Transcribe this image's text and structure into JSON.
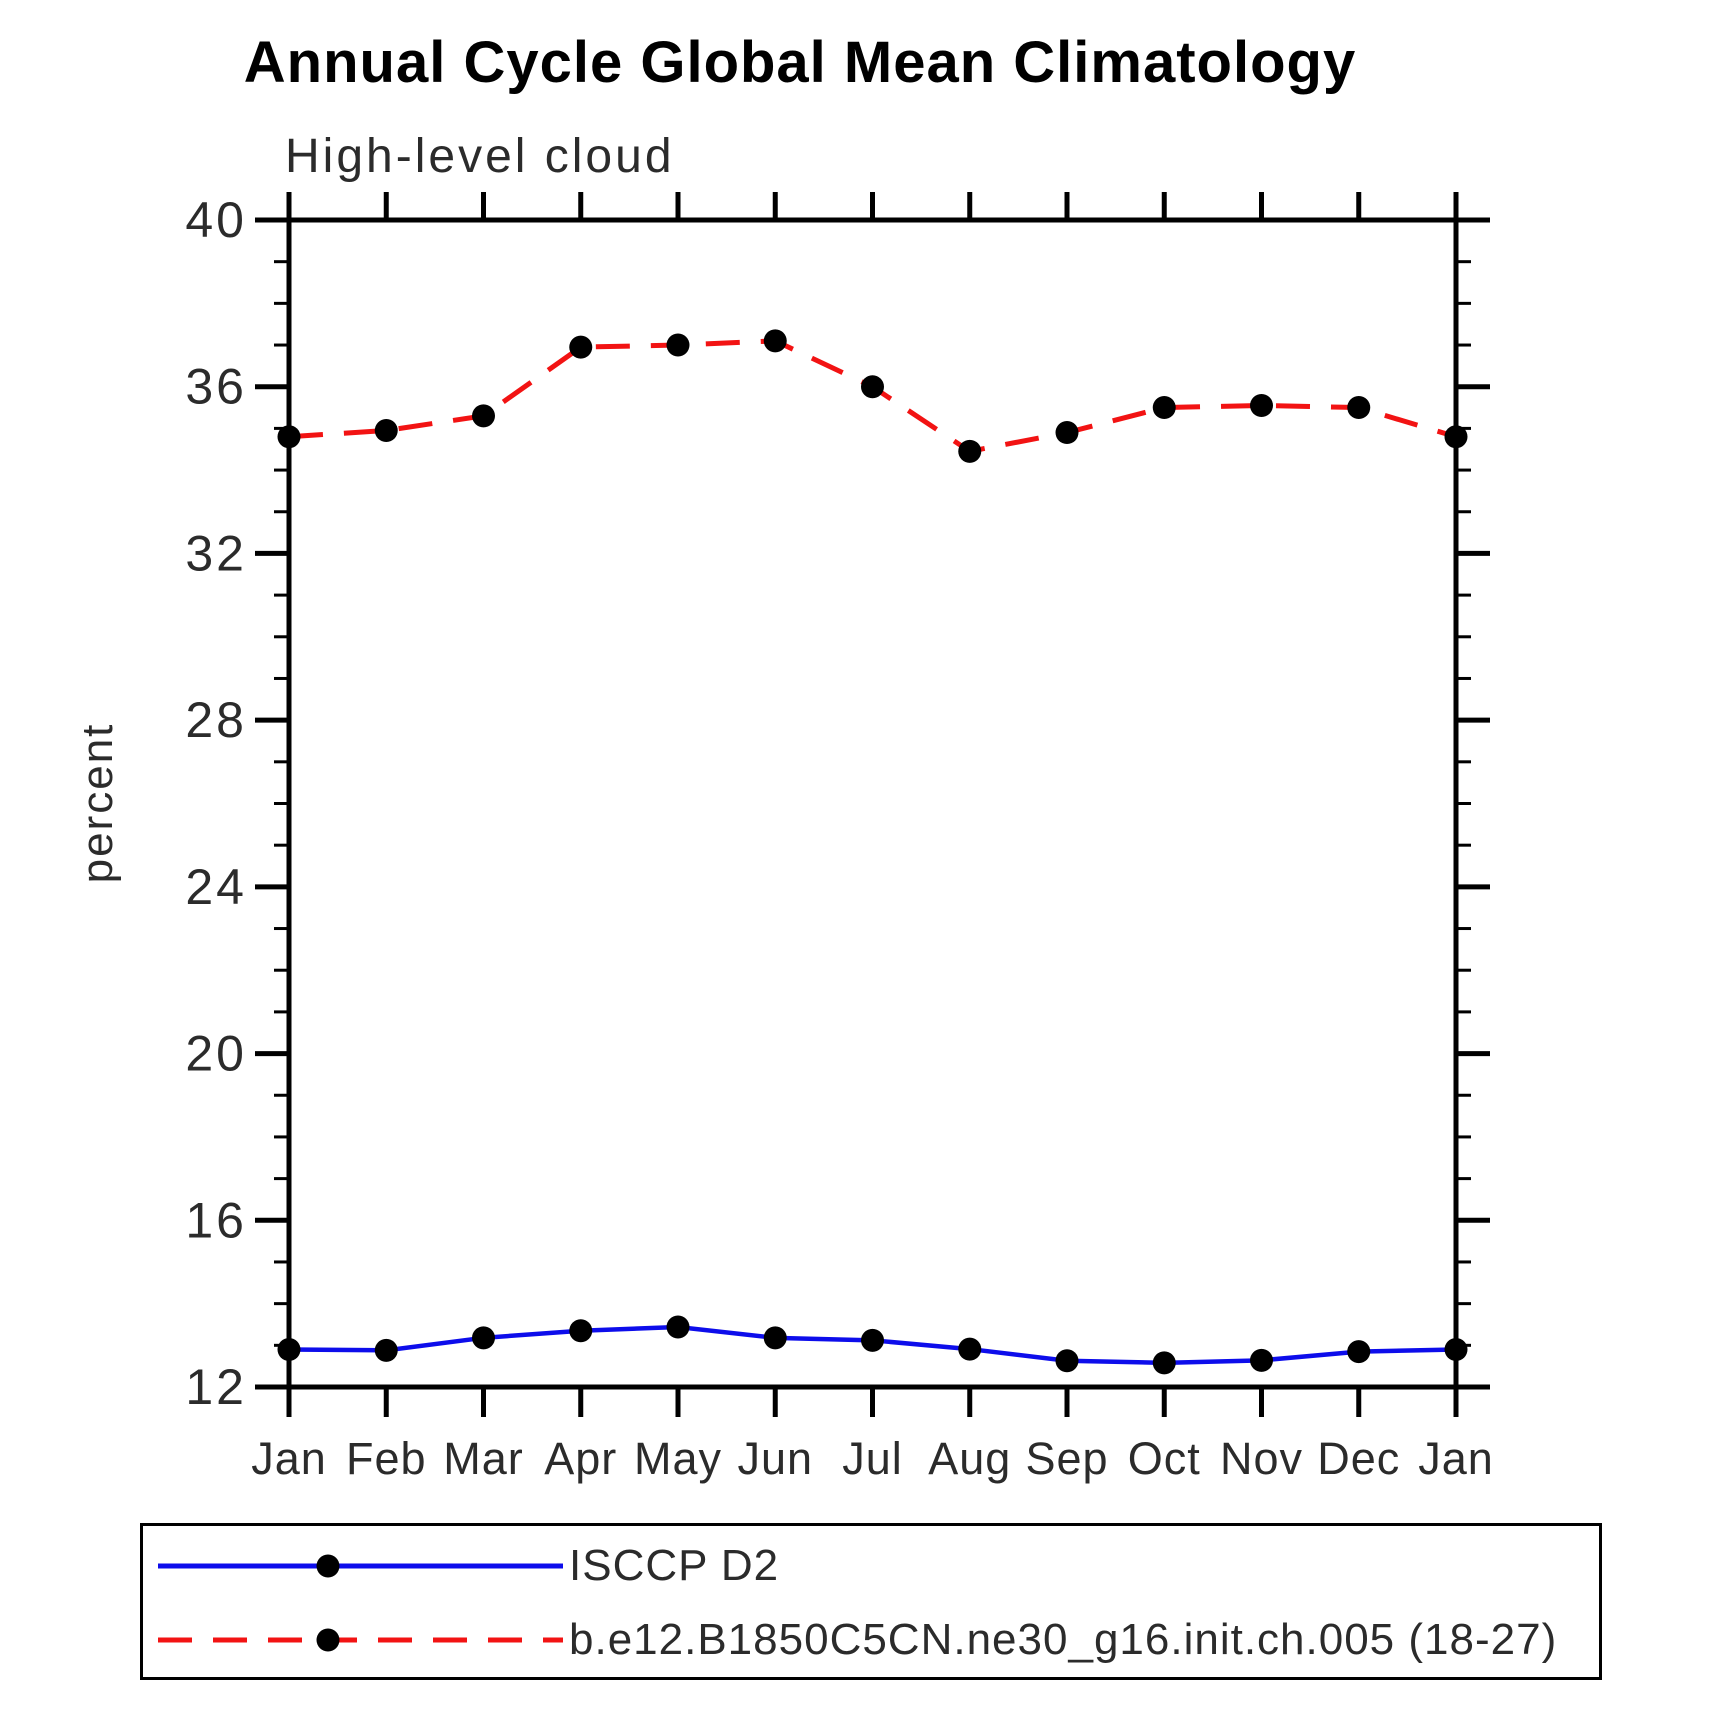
{
  "title": "Annual Cycle Global Mean Climatology",
  "subtitle": "High-level cloud",
  "chart_data": {
    "type": "line",
    "title": "Annual Cycle Global Mean Climatology",
    "subtitle": "High-level cloud",
    "xlabel": "",
    "ylabel": "percent",
    "ylim": [
      12,
      40
    ],
    "y_major_ticks": [
      12,
      16,
      20,
      24,
      28,
      32,
      36,
      40
    ],
    "y_minor_step": 1,
    "x_tick_labels": [
      "Jan",
      "Feb",
      "Mar",
      "Apr",
      "May",
      "Jun",
      "Jul",
      "Aug",
      "Sep",
      "Oct",
      "Nov",
      "Dec",
      "Jan"
    ],
    "grid": "off",
    "legend_position": "bottom-left",
    "colors": {
      "axis": "#000000",
      "background": "#ffffff",
      "marker": "#000000"
    },
    "series": [
      {
        "name": "ISCCP D2",
        "color": "#0d0deb",
        "line_style": "solid",
        "marker": "filled-circle",
        "marker_color": "#000000",
        "values": [
          12.9,
          12.88,
          13.18,
          13.35,
          13.44,
          13.18,
          13.12,
          12.91,
          12.63,
          12.58,
          12.64,
          12.85,
          12.9
        ]
      },
      {
        "name": "b.e12.B1850C5CN.ne30_g16.init.ch.005 (18-27)",
        "color": "#f21313",
        "line_style": "dashed",
        "marker": "filled-circle",
        "marker_color": "#000000",
        "values": [
          34.8,
          34.95,
          35.3,
          36.95,
          37.0,
          37.1,
          36.0,
          34.45,
          34.9,
          35.5,
          35.55,
          35.5,
          34.8
        ]
      }
    ]
  }
}
